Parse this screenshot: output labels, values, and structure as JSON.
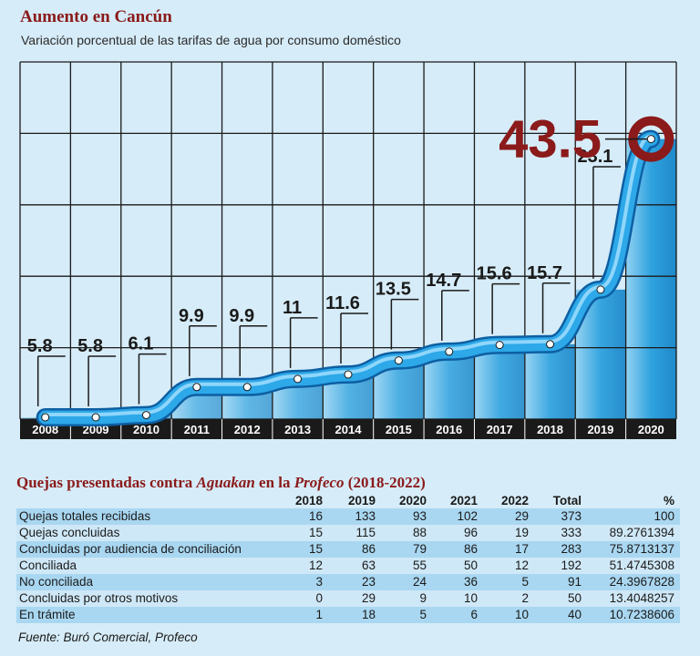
{
  "header": {
    "title": "Aumento en Cancún",
    "subtitle": "Variación porcentual de las tarifas de agua por consumo doméstico"
  },
  "chart_data": {
    "type": "line",
    "x": [
      "2008",
      "2009",
      "2010",
      "2011",
      "2012",
      "2013",
      "2014",
      "2015",
      "2016",
      "2017",
      "2018",
      "2019",
      "2020"
    ],
    "values": [
      5.8,
      5.8,
      6.1,
      9.9,
      9.9,
      11,
      11.6,
      13.5,
      14.7,
      15.6,
      15.7,
      23.1,
      43.5
    ],
    "data_labels": [
      "5.8",
      "5.8",
      "6.1",
      "9.9",
      "9.9",
      "11",
      "11.6",
      "13.5",
      "14.7",
      "15.6",
      "15.7",
      "23.1",
      "43.5"
    ],
    "highlight_index": 12,
    "ylim": [
      0,
      45
    ],
    "grid": true,
    "colors": {
      "line": "#2da8e8",
      "line_dark": "#0d5fa3",
      "highlight": "#8b1a1a",
      "axis_band": "#1a1a1a",
      "background": "#d6ecf8",
      "bars": "#2aa0de"
    }
  },
  "complaints_table": {
    "title_parts": [
      "Quejas presentadas contra ",
      "Aguakan",
      " en la ",
      "Profeco",
      " (2018-2022)"
    ],
    "columns": [
      "",
      "2018",
      "2019",
      "2020",
      "2021",
      "2022",
      "Total",
      "%"
    ],
    "rows": [
      {
        "label": "Quejas totales recibidas",
        "values": [
          "16",
          "133",
          "93",
          "102",
          "29",
          "373",
          "100"
        ]
      },
      {
        "label": "Quejas concluidas",
        "values": [
          "15",
          "115",
          "88",
          "96",
          "19",
          "333",
          "89.2761394"
        ]
      },
      {
        "label": "Concluidas por audiencia de conciliación",
        "values": [
          "15",
          "86",
          "79",
          "86",
          "17",
          "283",
          "75.8713137"
        ]
      },
      {
        "label": "Conciliada",
        "values": [
          "12",
          "63",
          "55",
          "50",
          "12",
          "192",
          "51.4745308"
        ]
      },
      {
        "label": "No conciliada",
        "values": [
          "3",
          "23",
          "24",
          "36",
          "5",
          "91",
          "24.3967828"
        ]
      },
      {
        "label": "Concluidas por otros motivos",
        "values": [
          "0",
          "29",
          "9",
          "10",
          "2",
          "50",
          "13.4048257"
        ]
      },
      {
        "label": "En trámite",
        "values": [
          "1",
          "18",
          "5",
          "6",
          "10",
          "40",
          "10.7238606"
        ]
      }
    ]
  },
  "source": "Fuente: Buró Comercial, Profeco"
}
